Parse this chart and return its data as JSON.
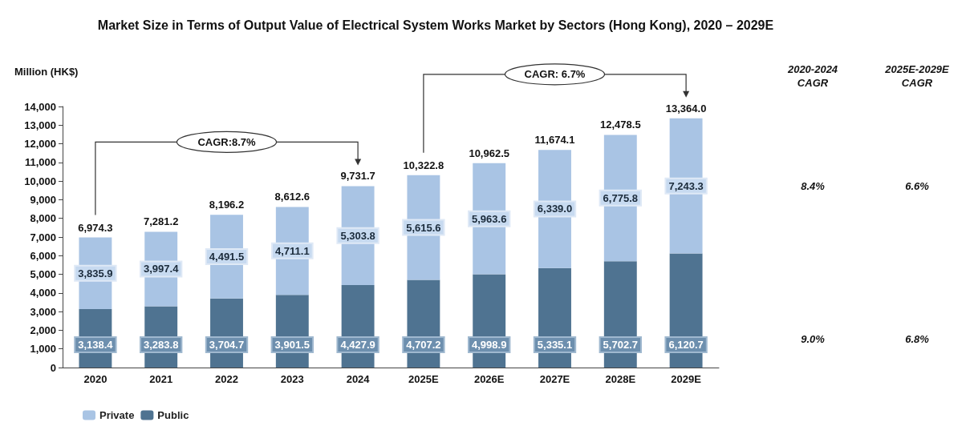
{
  "chart_data": {
    "type": "bar",
    "title": "Market Size in Terms of Output Value of Electrical System Works Market by Sectors (Hong Kong), 2020 – 2029E",
    "ylabel": "Million (HK$)",
    "categories": [
      "2020",
      "2021",
      "2022",
      "2023",
      "2024",
      "2025E",
      "2026E",
      "2027E",
      "2028E",
      "2029E"
    ],
    "stacked": true,
    "series": [
      {
        "name": "Public",
        "color": "#4f7391",
        "values": [
          3138.4,
          3283.8,
          3704.7,
          3901.5,
          4427.9,
          4707.2,
          4998.9,
          5335.1,
          5702.7,
          6120.7
        ],
        "value_labels": [
          "3,138.4",
          "3,283.8",
          "3,704.7",
          "3,901.5",
          "4,427.9",
          "4,707.2",
          "4,998.9",
          "5,335.1",
          "5,702.7",
          "6,120.7"
        ]
      },
      {
        "name": "Private",
        "color": "#a9c4e4",
        "values": [
          3835.9,
          3997.4,
          4491.5,
          4711.1,
          5303.8,
          5615.6,
          5963.6,
          6339.0,
          6775.8,
          7243.3
        ],
        "value_labels": [
          "3,835.9",
          "3,997.4",
          "4,491.5",
          "4,711.1",
          "5,303.8",
          "5,615.6",
          "5,963.6",
          "6,339.0",
          "6,775.8",
          "7,243.3"
        ]
      }
    ],
    "totals": [
      "6,974.3",
      "7,281.2",
      "8,196.2",
      "8,612.6",
      "9,731.7",
      "10,322.8",
      "10,962.5",
      "11,674.1",
      "12,478.5",
      "13,364.0"
    ],
    "ylim": [
      0,
      14000
    ],
    "yticks": [
      0,
      {
        "value": 1000,
        "label": "1,000"
      },
      {
        "value": 2000,
        "label": "2,000"
      },
      {
        "value": 3000,
        "label": "3,000"
      },
      {
        "value": 4000,
        "label": "4,000"
      },
      {
        "value": 5000,
        "label": "5,000"
      },
      {
        "value": 6000,
        "label": "6,000"
      },
      {
        "value": 7000,
        "label": "7,000"
      },
      {
        "value": 8000,
        "label": "8,000"
      },
      {
        "value": 9000,
        "label": "9,000"
      },
      {
        "value": 10000,
        "label": "10,000"
      },
      {
        "value": 11000,
        "label": "11,000"
      },
      {
        "value": 12000,
        "label": "12,000"
      },
      {
        "value": 13000,
        "label": "13,000"
      },
      {
        "value": 14000,
        "label": "14,000"
      }
    ],
    "grid": false,
    "legend": "bottom left",
    "annotations": [
      "CAGR:8.7%",
      "CAGR: 6.7%",
      "2020-2024 CAGR",
      "2025E-2029E CAGR",
      "8.4%",
      "6.6%",
      "9.0%",
      "6.8%"
    ]
  }
}
